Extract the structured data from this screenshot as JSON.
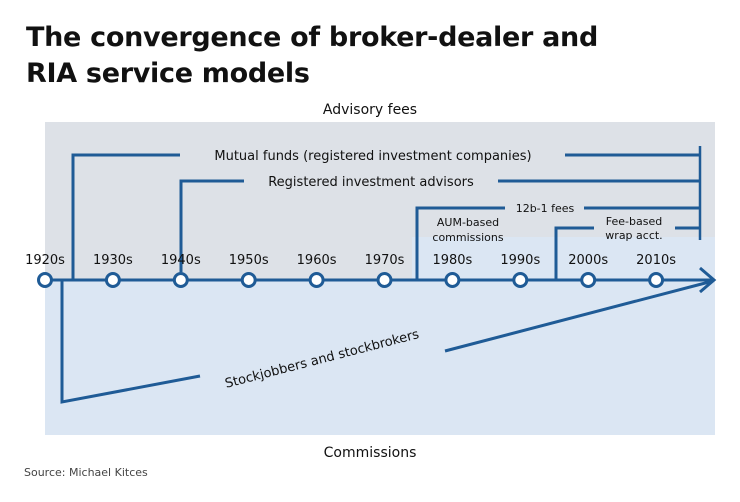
{
  "title_line1": "The convergence of broker-dealer and",
  "title_line2": "RIA service models",
  "top_label": "Advisory fees",
  "bottom_label": "Commissions",
  "source": "Source: Michael Kitces",
  "decades": [
    "1920s",
    "1930s",
    "1940s",
    "1950s",
    "1960s",
    "1970s",
    "1980s",
    "1990s",
    "2000s",
    "2010s"
  ],
  "branches": {
    "mutual_funds": "Mutual funds (registered investment companies)",
    "ria": "Registered investment advisors",
    "fees_12b1": "12b-1 fees",
    "aum_line1": "AUM-based",
    "aum_line2": "commissions",
    "wrap_line1": "Fee-based",
    "wrap_line2": "wrap acct.",
    "stockjobbers": "Stockjobbers and stockbrokers"
  },
  "colors": {
    "line": "#1f5b96",
    "gray_panel": "#dde1e7",
    "blue_panel": "#dbe6f3"
  }
}
